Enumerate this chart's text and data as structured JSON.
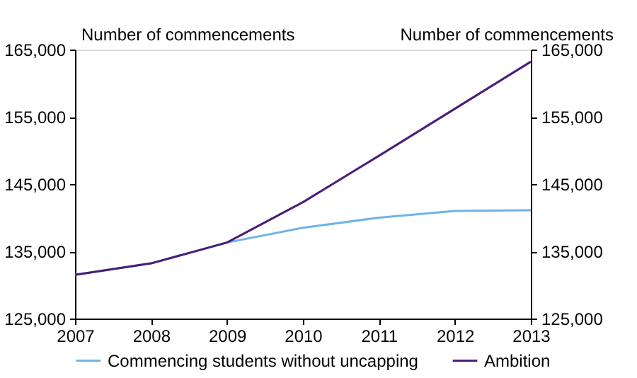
{
  "chart_data": {
    "type": "line",
    "ylabel": "Number of commencements",
    "y2label": "Number of commencements",
    "x": [
      2007,
      2008,
      2009,
      2010,
      2011,
      2012,
      2013
    ],
    "xlim": [
      2007,
      2013
    ],
    "xticks": [
      2007,
      2008,
      2009,
      2010,
      2011,
      2012,
      2013
    ],
    "ylim": [
      125000,
      165000
    ],
    "yticks": [
      {
        "value": 125000,
        "label": "125,000"
      },
      {
        "value": 135000,
        "label": "135,000"
      },
      {
        "value": 145000,
        "label": "145,000"
      },
      {
        "value": 155000,
        "label": "155,000"
      },
      {
        "value": 165000,
        "label": "165,000"
      }
    ],
    "y2lim": [
      125000,
      165000
    ],
    "y2ticks": [
      {
        "value": 125000,
        "label": "125,000"
      },
      {
        "value": 135000,
        "label": "135,000"
      },
      {
        "value": 145000,
        "label": "145,000"
      },
      {
        "value": 155000,
        "label": "155,000"
      },
      {
        "value": 165000,
        "label": "165,000"
      }
    ],
    "series": [
      {
        "name": "Commencing students without uncapping",
        "color": "#6fb3e8",
        "values": [
          131500,
          133200,
          136300,
          138500,
          140000,
          141000,
          141100
        ]
      },
      {
        "name": "Ambition",
        "color": "#4b1d7a",
        "values": [
          131500,
          133200,
          136300,
          142300,
          149200,
          156200,
          163200
        ]
      }
    ],
    "grid": false,
    "legend": "bottom",
    "marker": "none",
    "line_style": "solid"
  }
}
